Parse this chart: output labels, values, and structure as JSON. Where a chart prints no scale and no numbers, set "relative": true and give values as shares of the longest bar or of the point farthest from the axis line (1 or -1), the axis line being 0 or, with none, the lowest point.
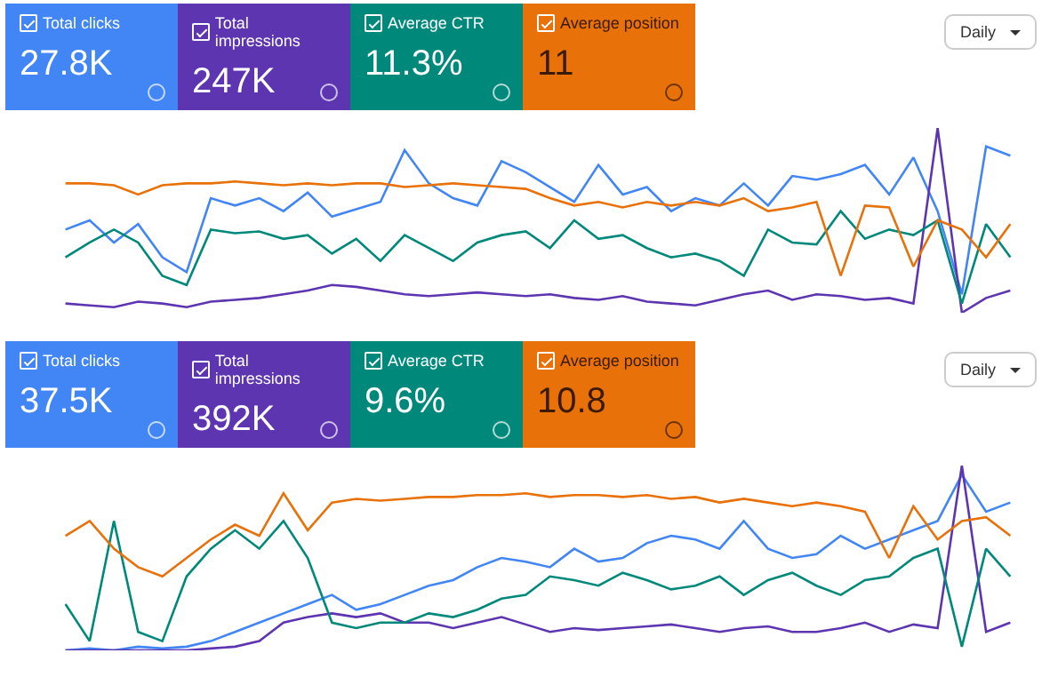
{
  "chart_data": [
    {
      "type": "line",
      "relative": true,
      "categories": [
        null,
        null,
        null,
        null,
        null,
        null,
        null,
        null,
        null,
        null,
        null,
        null,
        null,
        null,
        null,
        null,
        null,
        null,
        null,
        null,
        null,
        null,
        null,
        null,
        null,
        null,
        null,
        null,
        null,
        null,
        null,
        null,
        null,
        null,
        null,
        null,
        null,
        null,
        null,
        null
      ],
      "annotations": [
        "27.8K",
        "247K",
        "11.3%",
        "11",
        "Daily"
      ],
      "legend": "top left",
      "series": [
        {
          "name": "Total clicks",
          "color": "#4285f4",
          "values": [
            0.45,
            0.5,
            0.38,
            0.48,
            0.3,
            0.22,
            0.62,
            0.58,
            0.62,
            0.55,
            0.65,
            0.52,
            0.56,
            0.6,
            0.88,
            0.7,
            0.62,
            0.58,
            0.82,
            0.76,
            0.68,
            0.6,
            0.8,
            0.64,
            0.68,
            0.55,
            0.62,
            0.58,
            0.7,
            0.58,
            0.74,
            0.72,
            0.75,
            0.8,
            0.64,
            0.84,
            0.55,
            0.1,
            0.9,
            0.85
          ]
        },
        {
          "name": "Total impressions",
          "color": "#5e35b1",
          "values": [
            0.05,
            0.04,
            0.03,
            0.06,
            0.05,
            0.03,
            0.06,
            0.07,
            0.08,
            0.1,
            0.12,
            0.15,
            0.14,
            0.12,
            0.1,
            0.09,
            0.1,
            0.11,
            0.1,
            0.09,
            0.1,
            0.08,
            0.07,
            0.09,
            0.06,
            0.05,
            0.04,
            0.07,
            0.1,
            0.12,
            0.07,
            0.1,
            0.09,
            0.07,
            0.08,
            0.05,
            1.0,
            0.0,
            0.08,
            0.12
          ]
        },
        {
          "name": "Average CTR",
          "color": "#00897b",
          "values": [
            0.3,
            0.38,
            0.45,
            0.38,
            0.2,
            0.15,
            0.45,
            0.43,
            0.44,
            0.4,
            0.42,
            0.32,
            0.4,
            0.28,
            0.42,
            0.35,
            0.28,
            0.38,
            0.42,
            0.44,
            0.35,
            0.5,
            0.4,
            0.42,
            0.35,
            0.3,
            0.32,
            0.28,
            0.2,
            0.45,
            0.38,
            0.37,
            0.55,
            0.4,
            0.45,
            0.42,
            0.5,
            0.05,
            0.48,
            0.3
          ]
        },
        {
          "name": "Average position",
          "color": "#e8710a",
          "values": [
            0.7,
            0.7,
            0.69,
            0.64,
            0.69,
            0.7,
            0.7,
            0.71,
            0.7,
            0.69,
            0.7,
            0.69,
            0.7,
            0.7,
            0.68,
            0.69,
            0.7,
            0.69,
            0.68,
            0.67,
            0.62,
            0.58,
            0.6,
            0.57,
            0.6,
            0.58,
            0.6,
            0.58,
            0.62,
            0.55,
            0.57,
            0.6,
            0.2,
            0.58,
            0.57,
            0.25,
            0.5,
            0.45,
            0.3,
            0.48
          ]
        }
      ]
    },
    {
      "type": "line",
      "relative": true,
      "categories": [
        null,
        null,
        null,
        null,
        null,
        null,
        null,
        null,
        null,
        null,
        null,
        null,
        null,
        null,
        null,
        null,
        null,
        null,
        null,
        null,
        null,
        null,
        null,
        null,
        null,
        null,
        null,
        null,
        null,
        null,
        null,
        null,
        null,
        null,
        null,
        null,
        null,
        null,
        null,
        null
      ],
      "annotations": [
        "37.5K",
        "392K",
        "9.6%",
        "10.8",
        "Daily"
      ],
      "legend": "top left",
      "series": [
        {
          "name": "Total clicks",
          "color": "#4285f4",
          "values": [
            0.0,
            0.01,
            0.0,
            0.02,
            0.01,
            0.02,
            0.05,
            0.1,
            0.15,
            0.2,
            0.25,
            0.3,
            0.22,
            0.25,
            0.3,
            0.35,
            0.38,
            0.45,
            0.5,
            0.48,
            0.45,
            0.55,
            0.48,
            0.5,
            0.58,
            0.62,
            0.6,
            0.55,
            0.7,
            0.55,
            0.5,
            0.52,
            0.62,
            0.55,
            0.6,
            0.65,
            0.7,
            0.95,
            0.75,
            0.8
          ]
        },
        {
          "name": "Total impressions",
          "color": "#5e35b1",
          "values": [
            0.0,
            0.0,
            0.0,
            0.0,
            0.0,
            0.0,
            0.01,
            0.02,
            0.05,
            0.15,
            0.18,
            0.2,
            0.18,
            0.2,
            0.15,
            0.15,
            0.12,
            0.15,
            0.18,
            0.14,
            0.1,
            0.12,
            0.11,
            0.12,
            0.13,
            0.14,
            0.12,
            0.1,
            0.12,
            0.13,
            0.1,
            0.1,
            0.12,
            0.15,
            0.1,
            0.14,
            0.12,
            1.0,
            0.1,
            0.15
          ]
        },
        {
          "name": "Average CTR",
          "color": "#00897b",
          "values": [
            0.25,
            0.05,
            0.7,
            0.1,
            0.05,
            0.4,
            0.55,
            0.65,
            0.55,
            0.7,
            0.5,
            0.15,
            0.12,
            0.15,
            0.15,
            0.2,
            0.18,
            0.22,
            0.28,
            0.3,
            0.4,
            0.38,
            0.35,
            0.42,
            0.38,
            0.33,
            0.35,
            0.4,
            0.3,
            0.38,
            0.42,
            0.35,
            0.3,
            0.38,
            0.4,
            0.5,
            0.55,
            0.02,
            0.55,
            0.4
          ]
        },
        {
          "name": "Average position",
          "color": "#e8710a",
          "values": [
            0.62,
            0.7,
            0.55,
            0.45,
            0.4,
            0.5,
            0.6,
            0.68,
            0.62,
            0.85,
            0.65,
            0.8,
            0.82,
            0.81,
            0.82,
            0.83,
            0.83,
            0.84,
            0.84,
            0.85,
            0.83,
            0.84,
            0.84,
            0.83,
            0.84,
            0.82,
            0.83,
            0.8,
            0.82,
            0.8,
            0.78,
            0.8,
            0.78,
            0.75,
            0.5,
            0.78,
            0.6,
            0.7,
            0.72,
            0.62
          ]
        }
      ]
    }
  ]
}
